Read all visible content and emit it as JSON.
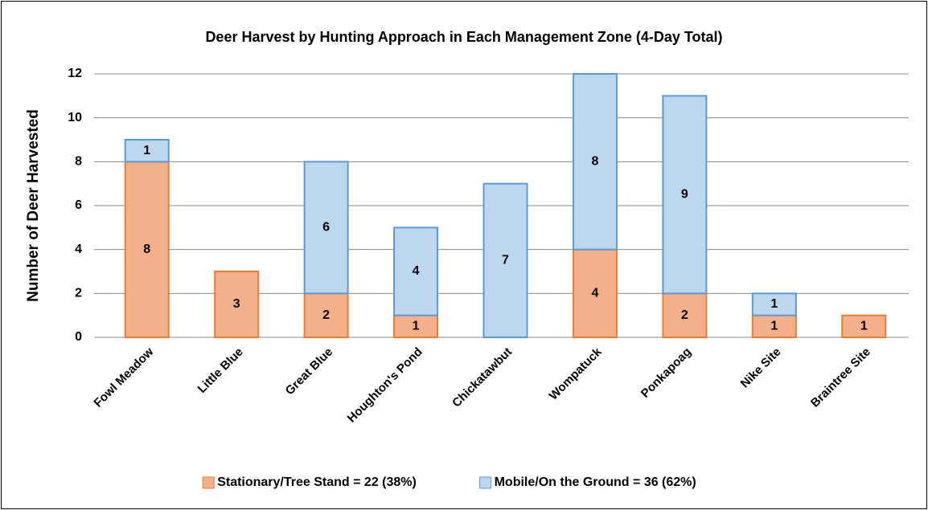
{
  "chart_data": {
    "type": "stacked-bar",
    "title": "Deer Harvest by Hunting Approach in Each Management Zone (4-Day Total)",
    "y_label": "Number of Deer Harvested",
    "categories": [
      "Fowl Meadow",
      "Little Blue",
      "Great Blue",
      "Houghton's Pond",
      "Chickatawbut",
      "Wompatuck",
      "Ponkapoag",
      "Nike Site",
      "Braintree Site"
    ],
    "series": [
      {
        "name": "Stationary/Tree Stand = 22 (38%)",
        "color": "#f4b08a",
        "edge_color": "#ed7d31",
        "values": [
          8,
          3,
          2,
          1,
          0,
          4,
          2,
          1,
          1
        ]
      },
      {
        "name": "Mobile/On the Ground = 36 (62%)",
        "color": "#bdd7ee",
        "edge_color": "#5b9bd5",
        "values": [
          1,
          0,
          6,
          4,
          7,
          8,
          9,
          1,
          0
        ]
      }
    ],
    "ylim": [
      0,
      12
    ],
    "yticks": [
      0,
      2,
      4,
      6,
      8,
      10,
      12
    ],
    "grid": true,
    "legend": "bottom"
  }
}
